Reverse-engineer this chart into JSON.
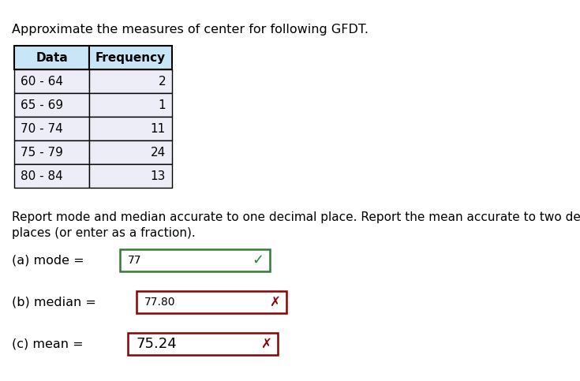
{
  "title": "Approximate the measures of center for following GFDT.",
  "table_headers": [
    "Data",
    "Frequency"
  ],
  "table_rows": [
    [
      "60 - 64",
      "2"
    ],
    [
      "65 - 69",
      "1"
    ],
    [
      "70 - 74",
      "11"
    ],
    [
      "75 - 79",
      "24"
    ],
    [
      "80 - 84",
      "13"
    ]
  ],
  "instruction_line1": "Report mode and median accurate to one decimal place. Report the mean accurate to two decimal",
  "instruction_line2": "places (or enter as a fraction).",
  "answers": [
    {
      "label": "(a) mode = ",
      "value": "77",
      "correct": true,
      "value_fontsize": 10
    },
    {
      "label": "(b) median = ",
      "value": "77.80",
      "correct": false,
      "value_fontsize": 10
    },
    {
      "label": "(c) mean = ",
      "value": "75.24",
      "correct": false,
      "value_fontsize": 13
    }
  ],
  "bg_color": "#ffffff",
  "table_header_bg": "#c8e6f5",
  "table_row_bg": "#ededf8",
  "table_border_color": "#000000",
  "correct_box_color": "#2e7d32",
  "incorrect_box_color": "#8b0000",
  "check_color": "#2e7d32",
  "x_color": "#8b0000",
  "text_color": "#000000",
  "font_size_title": 11.5,
  "font_size_table_header": 11,
  "font_size_table_data": 11,
  "font_size_instruction": 11,
  "font_size_label": 11.5
}
